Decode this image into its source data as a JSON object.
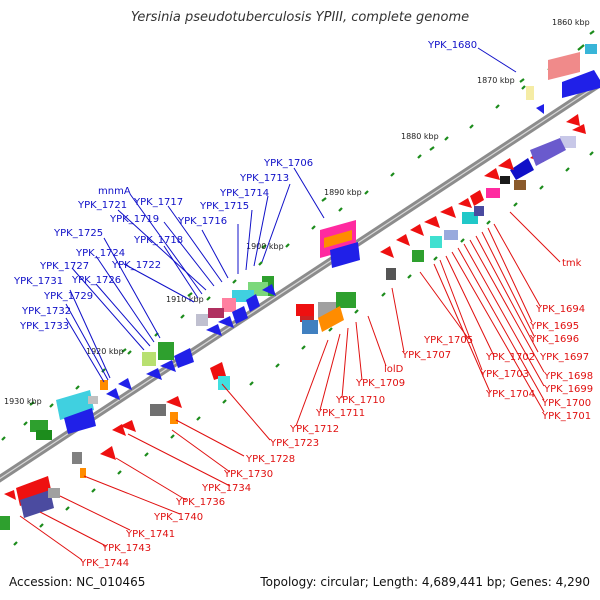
{
  "title": "Yersinia pseudotuberculosis YPIII, complete genome",
  "footer": {
    "accession": "Accession: NC_010465",
    "topology": "Topology: circular; Length: 4,689,441 bp; Genes: 4,290"
  },
  "colors": {
    "plus_strand_labels": "#1010c8",
    "minus_strand_labels": "#e01010",
    "backbone": "#8c8c8c",
    "tick": "#1c8c1c"
  },
  "kbp_marks": [
    {
      "label": "1860 kbp"
    },
    {
      "label": "1870 kbp"
    },
    {
      "label": "1880 kbp"
    },
    {
      "label": "1890 kbp"
    },
    {
      "label": "1900 kbp"
    },
    {
      "label": "1910 kbp"
    },
    {
      "label": "1920 kbp"
    },
    {
      "label": "1930 kbp"
    }
  ],
  "blue_labels": [
    "YPK_1680",
    "YPK_1706",
    "YPK_1713",
    "YPK_1714",
    "YPK_1715",
    "YPK_1716",
    "YPK_1717",
    "YPK_1718",
    "YPK_1719",
    "YPK_1721",
    "mnmA",
    "YPK_1722",
    "YPK_1724",
    "YPK_1725",
    "YPK_1726",
    "YPK_1727",
    "YPK_1729",
    "YPK_1731",
    "YPK_1732",
    "YPK_1733"
  ],
  "red_labels": [
    "tmk",
    "YPK_1694",
    "YPK_1695",
    "YPK_1696",
    "YPK_1697",
    "YPK_1698",
    "YPK_1699",
    "YPK_1700",
    "YPK_1701",
    "YPK_1702",
    "YPK_1703",
    "YPK_1704",
    "YPK_1705",
    "YPK_1707",
    "lolD",
    "YPK_1709",
    "YPK_1710",
    "YPK_1711",
    "YPK_1712",
    "YPK_1723",
    "YPK_1728",
    "YPK_1730",
    "YPK_1734",
    "YPK_1736",
    "YPK_1740",
    "YPK_1741",
    "YPK_1743",
    "YPK_1744"
  ]
}
